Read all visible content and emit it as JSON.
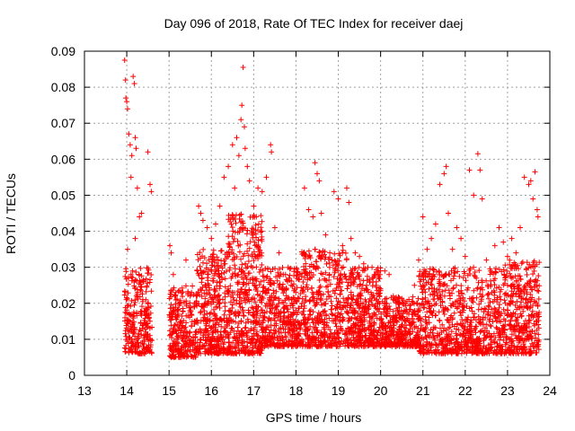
{
  "chart_data": {
    "type": "scatter",
    "title": "Day 096 of 2018, Rate Of TEC Index for receiver daej",
    "xlabel": "GPS time / hours",
    "ylabel": "ROTI / TECUs",
    "xlim": [
      13,
      24
    ],
    "ylim": [
      0,
      0.09
    ],
    "xticks": [
      13,
      14,
      15,
      16,
      17,
      18,
      19,
      20,
      21,
      22,
      23,
      24
    ],
    "yticks": [
      0,
      0.01,
      0.02,
      0.03,
      0.04,
      0.05,
      0.06,
      0.07,
      0.08,
      0.09
    ],
    "ytick_labels": [
      "0",
      "0.01",
      "0.02",
      "0.03",
      "0.04",
      "0.05",
      "0.06",
      "0.07",
      "0.08",
      "0.09"
    ],
    "grid": true,
    "marker": "+",
    "colors": {
      "marker": "#ff0000",
      "grid": "#a0a0a0",
      "axis": "#000000"
    },
    "series": [
      {
        "name": "daej",
        "description_note": "dense scatter of ROTI samples; values below are a representative subset read from the plot",
        "points": [
          [
            13.95,
            0.0875
          ],
          [
            13.97,
            0.082
          ],
          [
            13.98,
            0.077
          ],
          [
            14.0,
            0.076
          ],
          [
            14.02,
            0.074
          ],
          [
            14.05,
            0.067
          ],
          [
            14.08,
            0.064
          ],
          [
            14.1,
            0.055
          ],
          [
            14.12,
            0.061
          ],
          [
            14.15,
            0.083
          ],
          [
            14.18,
            0.081
          ],
          [
            14.2,
            0.066
          ],
          [
            14.22,
            0.063
          ],
          [
            14.25,
            0.052
          ],
          [
            14.3,
            0.044
          ],
          [
            14.5,
            0.062
          ],
          [
            14.55,
            0.053
          ],
          [
            14.58,
            0.051
          ],
          [
            14.02,
            0.035
          ],
          [
            14.1,
            0.028
          ],
          [
            14.2,
            0.038
          ],
          [
            14.35,
            0.045
          ],
          [
            14.4,
            0.026
          ],
          [
            14.45,
            0.021
          ],
          [
            14.55,
            0.015
          ],
          [
            14.05,
            0.012
          ],
          [
            14.15,
            0.008
          ],
          [
            14.25,
            0.009
          ],
          [
            14.4,
            0.011
          ],
          [
            14.5,
            0.01
          ],
          [
            15.02,
            0.036
          ],
          [
            15.05,
            0.034
          ],
          [
            15.1,
            0.028
          ],
          [
            15.2,
            0.018
          ],
          [
            15.3,
            0.013
          ],
          [
            15.4,
            0.032
          ],
          [
            15.5,
            0.022
          ],
          [
            15.6,
            0.015
          ],
          [
            15.15,
            0.008
          ],
          [
            15.35,
            0.006
          ],
          [
            15.7,
            0.047
          ],
          [
            15.75,
            0.045
          ],
          [
            15.8,
            0.043
          ],
          [
            15.9,
            0.041
          ],
          [
            16.0,
            0.038
          ],
          [
            16.1,
            0.042
          ],
          [
            16.2,
            0.047
          ],
          [
            16.3,
            0.055
          ],
          [
            16.4,
            0.058
          ],
          [
            16.5,
            0.064
          ],
          [
            16.55,
            0.052
          ],
          [
            16.6,
            0.066
          ],
          [
            16.65,
            0.061
          ],
          [
            16.7,
            0.071
          ],
          [
            16.72,
            0.075
          ],
          [
            16.75,
            0.0855
          ],
          [
            16.78,
            0.069
          ],
          [
            16.8,
            0.063
          ],
          [
            16.85,
            0.058
          ],
          [
            16.9,
            0.054
          ],
          [
            17.0,
            0.047
          ],
          [
            17.1,
            0.052
          ],
          [
            17.2,
            0.051
          ],
          [
            17.3,
            0.055
          ],
          [
            17.4,
            0.064
          ],
          [
            17.42,
            0.062
          ],
          [
            17.5,
            0.041
          ],
          [
            17.6,
            0.034
          ],
          [
            17.7,
            0.028
          ],
          [
            17.8,
            0.026
          ],
          [
            17.9,
            0.021
          ],
          [
            18.0,
            0.018
          ],
          [
            18.2,
            0.052
          ],
          [
            18.3,
            0.046
          ],
          [
            18.4,
            0.044
          ],
          [
            18.45,
            0.059
          ],
          [
            18.5,
            0.056
          ],
          [
            18.55,
            0.054
          ],
          [
            18.6,
            0.045
          ],
          [
            18.7,
            0.039
          ],
          [
            18.8,
            0.034
          ],
          [
            18.9,
            0.051
          ],
          [
            19.0,
            0.049
          ],
          [
            19.1,
            0.036
          ],
          [
            19.2,
            0.052
          ],
          [
            19.25,
            0.048
          ],
          [
            19.3,
            0.038
          ],
          [
            19.4,
            0.034
          ],
          [
            19.5,
            0.033
          ],
          [
            19.6,
            0.031
          ],
          [
            19.7,
            0.03
          ],
          [
            19.8,
            0.027
          ],
          [
            19.9,
            0.026
          ],
          [
            20.0,
            0.024
          ],
          [
            20.1,
            0.029
          ],
          [
            20.2,
            0.028
          ],
          [
            20.3,
            0.022
          ],
          [
            20.4,
            0.018
          ],
          [
            20.5,
            0.014
          ],
          [
            20.6,
            0.013
          ],
          [
            20.8,
            0.025
          ],
          [
            20.9,
            0.032
          ],
          [
            21.0,
            0.044
          ],
          [
            21.1,
            0.035
          ],
          [
            21.2,
            0.038
          ],
          [
            21.3,
            0.042
          ],
          [
            21.4,
            0.053
          ],
          [
            21.5,
            0.056
          ],
          [
            21.55,
            0.058
          ],
          [
            21.6,
            0.045
          ],
          [
            21.7,
            0.035
          ],
          [
            21.8,
            0.041
          ],
          [
            21.9,
            0.038
          ],
          [
            22.0,
            0.033
          ],
          [
            22.1,
            0.057
          ],
          [
            22.2,
            0.05
          ],
          [
            22.3,
            0.0615
          ],
          [
            22.35,
            0.057
          ],
          [
            22.4,
            0.049
          ],
          [
            22.5,
            0.032
          ],
          [
            22.6,
            0.029
          ],
          [
            22.7,
            0.036
          ],
          [
            22.8,
            0.041
          ],
          [
            22.9,
            0.037
          ],
          [
            23.0,
            0.033
          ],
          [
            23.1,
            0.038
          ],
          [
            23.2,
            0.034
          ],
          [
            23.3,
            0.041
          ],
          [
            23.4,
            0.055
          ],
          [
            23.5,
            0.053
          ],
          [
            23.55,
            0.054
          ],
          [
            23.6,
            0.049
          ],
          [
            23.65,
            0.0565
          ],
          [
            23.7,
            0.046
          ],
          [
            23.72,
            0.044
          ]
        ]
      }
    ]
  }
}
